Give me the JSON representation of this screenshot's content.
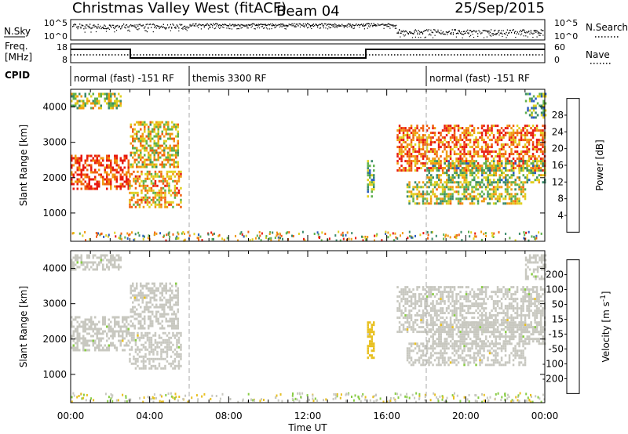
{
  "header": {
    "station": "Christmas Valley West (fitACF)",
    "beam": "Beam 04",
    "date": "25/Sep/2015"
  },
  "noise_panel": {
    "left_label": "N.Sky",
    "right_label": "N.Search",
    "left_ticks": [
      "10^5",
      "10^0"
    ],
    "right_ticks": [
      "10^5",
      "10^0"
    ]
  },
  "freq_panel": {
    "left_label_1": "Freq.",
    "left_label_2": "[MHz]",
    "right_label": "Nave",
    "left_ticks": [
      "18",
      "8"
    ],
    "right_ticks": [
      "60",
      "0"
    ]
  },
  "cpid_panel": {
    "label": "CPID",
    "modes": [
      {
        "name": "normal (fast) -151 RF",
        "start_hour": 0,
        "end_hour": 6
      },
      {
        "name": "themis 3300 RF",
        "start_hour": 6,
        "end_hour": 18
      },
      {
        "name": "normal (fast) -151 RF",
        "start_hour": 18,
        "end_hour": 24
      }
    ]
  },
  "x_axis": {
    "label": "Time UT",
    "ticks": [
      "00:00",
      "04:00",
      "08:00",
      "12:00",
      "16:00",
      "20:00",
      "00:00"
    ]
  },
  "chart_data": [
    {
      "type": "heatmap",
      "title": "",
      "xlabel": "Time UT",
      "ylabel": "Slant Range [km]",
      "xlim": [
        0,
        24
      ],
      "ylim": [
        200,
        4500
      ],
      "yticks": [
        1000,
        2000,
        3000,
        4000
      ],
      "colorbar": {
        "label": "Power [dB]",
        "ticks": [
          "4",
          "8",
          "12",
          "16",
          "20",
          "24",
          "28"
        ],
        "range": [
          0,
          30
        ],
        "colors": [
          "#0000ee",
          "#2a5cc0",
          "#3a8a6a",
          "#5fb04d",
          "#e0d020",
          "#f09a10",
          "#f06010",
          "#e81a10"
        ]
      },
      "echo_regions": [
        {
          "start_hour": 0.0,
          "end_hour": 2.95,
          "range_low_km": 1700,
          "range_high_km": 2650,
          "value": 26
        },
        {
          "start_hour": 0.0,
          "end_hour": 2.5,
          "range_low_km": 4000,
          "range_high_km": 4400,
          "value": 16
        },
        {
          "start_hour": 2.95,
          "end_hour": 5.6,
          "range_low_km": 1200,
          "range_high_km": 2200,
          "value": 20
        },
        {
          "start_hour": 3.0,
          "end_hour": 5.4,
          "range_low_km": 2300,
          "range_high_km": 3600,
          "value": 18
        },
        {
          "start_hour": 15.0,
          "end_hour": 15.3,
          "range_low_km": 1500,
          "range_high_km": 2500,
          "value": 12
        },
        {
          "start_hour": 16.5,
          "end_hour": 24.0,
          "range_low_km": 2200,
          "range_high_km": 3500,
          "value": 24
        },
        {
          "start_hour": 17.0,
          "end_hour": 23.0,
          "range_low_km": 1300,
          "range_high_km": 1900,
          "value": 16
        },
        {
          "start_hour": 18.0,
          "end_hour": 24.0,
          "range_low_km": 1900,
          "range_high_km": 2500,
          "value": 14
        },
        {
          "start_hour": 23.0,
          "end_hour": 24.0,
          "range_low_km": 3700,
          "range_high_km": 4400,
          "value": 12
        }
      ]
    },
    {
      "type": "heatmap",
      "title": "",
      "xlabel": "Time UT",
      "ylabel": "Slant Range [km]",
      "xlim": [
        0,
        24
      ],
      "ylim": [
        200,
        4500
      ],
      "yticks": [
        1000,
        2000,
        3000,
        4000
      ],
      "colorbar": {
        "label": "Velocity [m s^-1]",
        "ticks": [
          "200",
          "100",
          "50",
          "15",
          "-15",
          "-50",
          "-100",
          "-200"
        ],
        "range": [
          -250,
          250
        ],
        "colors": [
          "#2233bb",
          "#3a8a8a",
          "#3aa055",
          "#88cc44",
          "#c8c8c0",
          "#e8c020",
          "#f08a10",
          "#e8301a",
          "#e00000"
        ]
      },
      "echo_regions": [
        {
          "start_hour": 0.0,
          "end_hour": 2.95,
          "range_low_km": 1700,
          "range_high_km": 2650,
          "value": 0
        },
        {
          "start_hour": 0.0,
          "end_hour": 2.5,
          "range_low_km": 4000,
          "range_high_km": 4400,
          "value": 0
        },
        {
          "start_hour": 2.95,
          "end_hour": 5.6,
          "range_low_km": 1200,
          "range_high_km": 2200,
          "value": 0
        },
        {
          "start_hour": 3.0,
          "end_hour": 5.4,
          "range_low_km": 2300,
          "range_high_km": 3600,
          "value": 0
        },
        {
          "start_hour": 15.0,
          "end_hour": 15.3,
          "range_low_km": 1500,
          "range_high_km": 2500,
          "value": 40
        },
        {
          "start_hour": 16.5,
          "end_hour": 24.0,
          "range_low_km": 2200,
          "range_high_km": 3500,
          "value": 0
        },
        {
          "start_hour": 17.0,
          "end_hour": 23.0,
          "range_low_km": 1300,
          "range_high_km": 1900,
          "value": 0
        },
        {
          "start_hour": 18.0,
          "end_hour": 24.0,
          "range_low_km": 1900,
          "range_high_km": 2500,
          "value": 0
        },
        {
          "start_hour": 23.0,
          "end_hour": 24.0,
          "range_low_km": 3700,
          "range_high_km": 4400,
          "value": 0
        }
      ]
    }
  ]
}
